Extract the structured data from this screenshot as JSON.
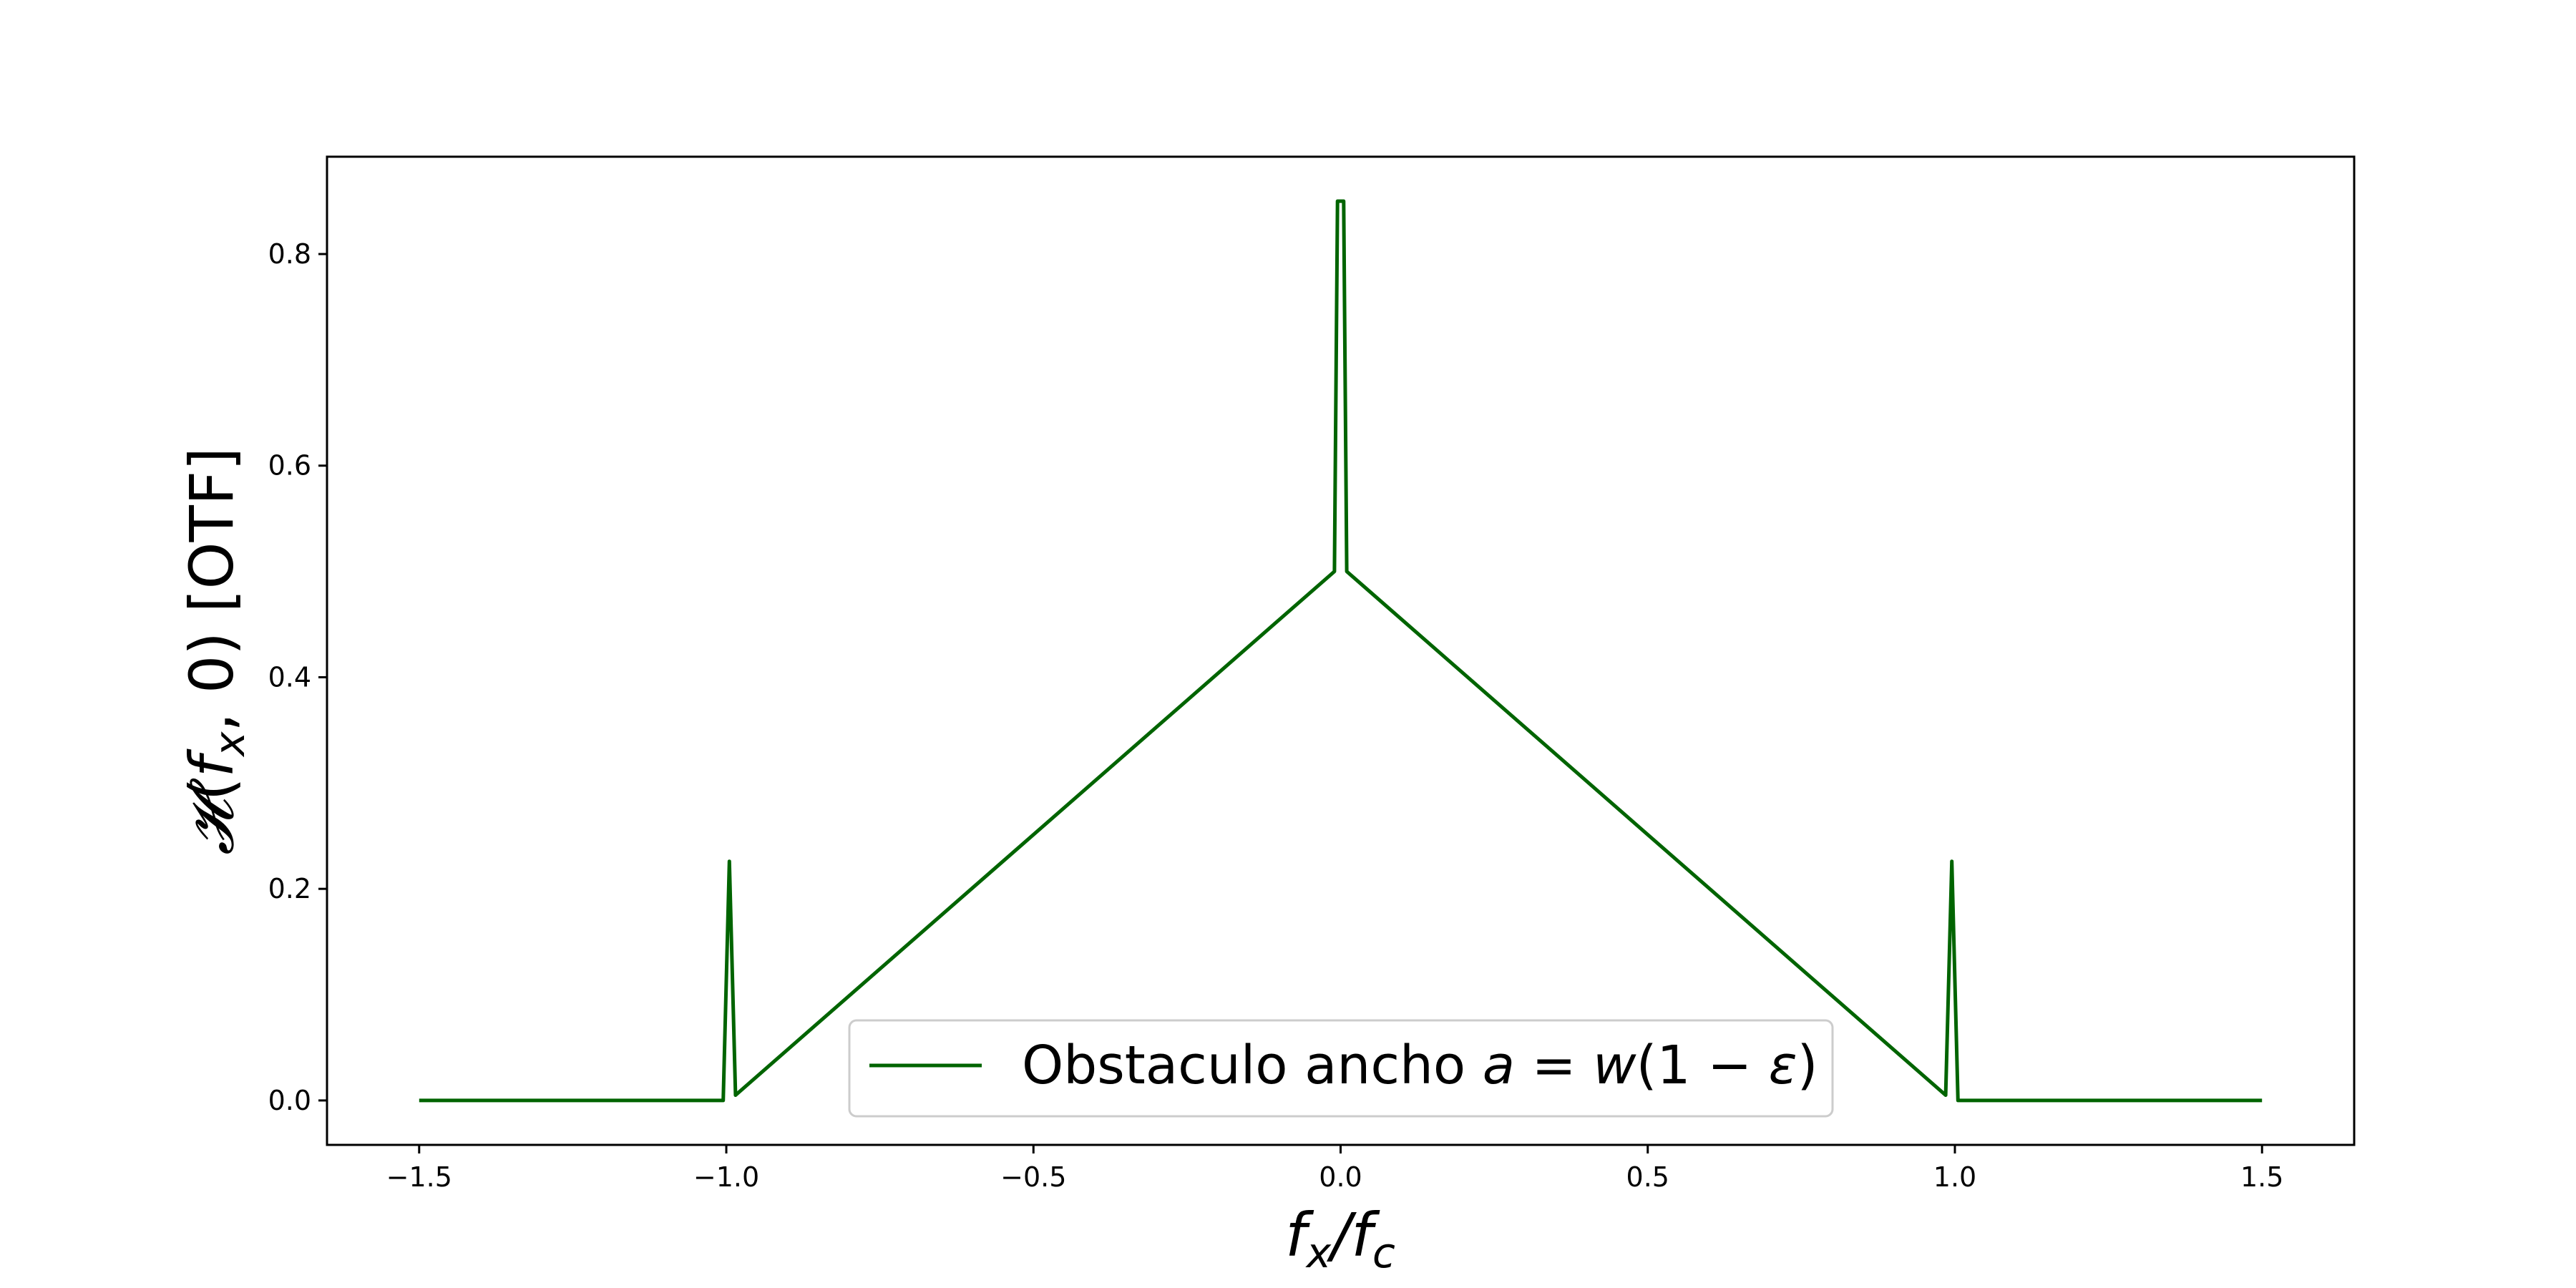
{
  "chart_data": {
    "type": "line",
    "xlabel": "f_x/f_c",
    "ylabel": "H(f_x, 0)   [OTF]",
    "xlim": [
      -1.65,
      1.65
    ],
    "ylim": [
      -0.042,
      0.892
    ],
    "xticks": [
      -1.5,
      -1.0,
      -0.5,
      0.0,
      0.5,
      1.0,
      1.5
    ],
    "xtick_labels": [
      "−1.5",
      "−1.0",
      "−0.5",
      "0.0",
      "0.5",
      "1.0",
      "1.5"
    ],
    "yticks": [
      0.0,
      0.2,
      0.4,
      0.6,
      0.8
    ],
    "ytick_labels": [
      "0.0",
      "0.2",
      "0.4",
      "0.6",
      "0.8"
    ],
    "grid": false,
    "legend_position": "bottom-center",
    "series": [
      {
        "name": "Obstaculo ancho a = w(1 − ε)",
        "color": "#006400",
        "x": [
          -1.5,
          -1.005,
          -0.995,
          -0.985,
          -0.01,
          -0.005,
          0.005,
          0.01,
          0.985,
          0.995,
          1.005,
          1.5
        ],
        "y": [
          0.0,
          0.0,
          0.226,
          0.005,
          0.5,
          0.85,
          0.85,
          0.5,
          0.005,
          0.226,
          0.0,
          0.0
        ]
      }
    ]
  }
}
